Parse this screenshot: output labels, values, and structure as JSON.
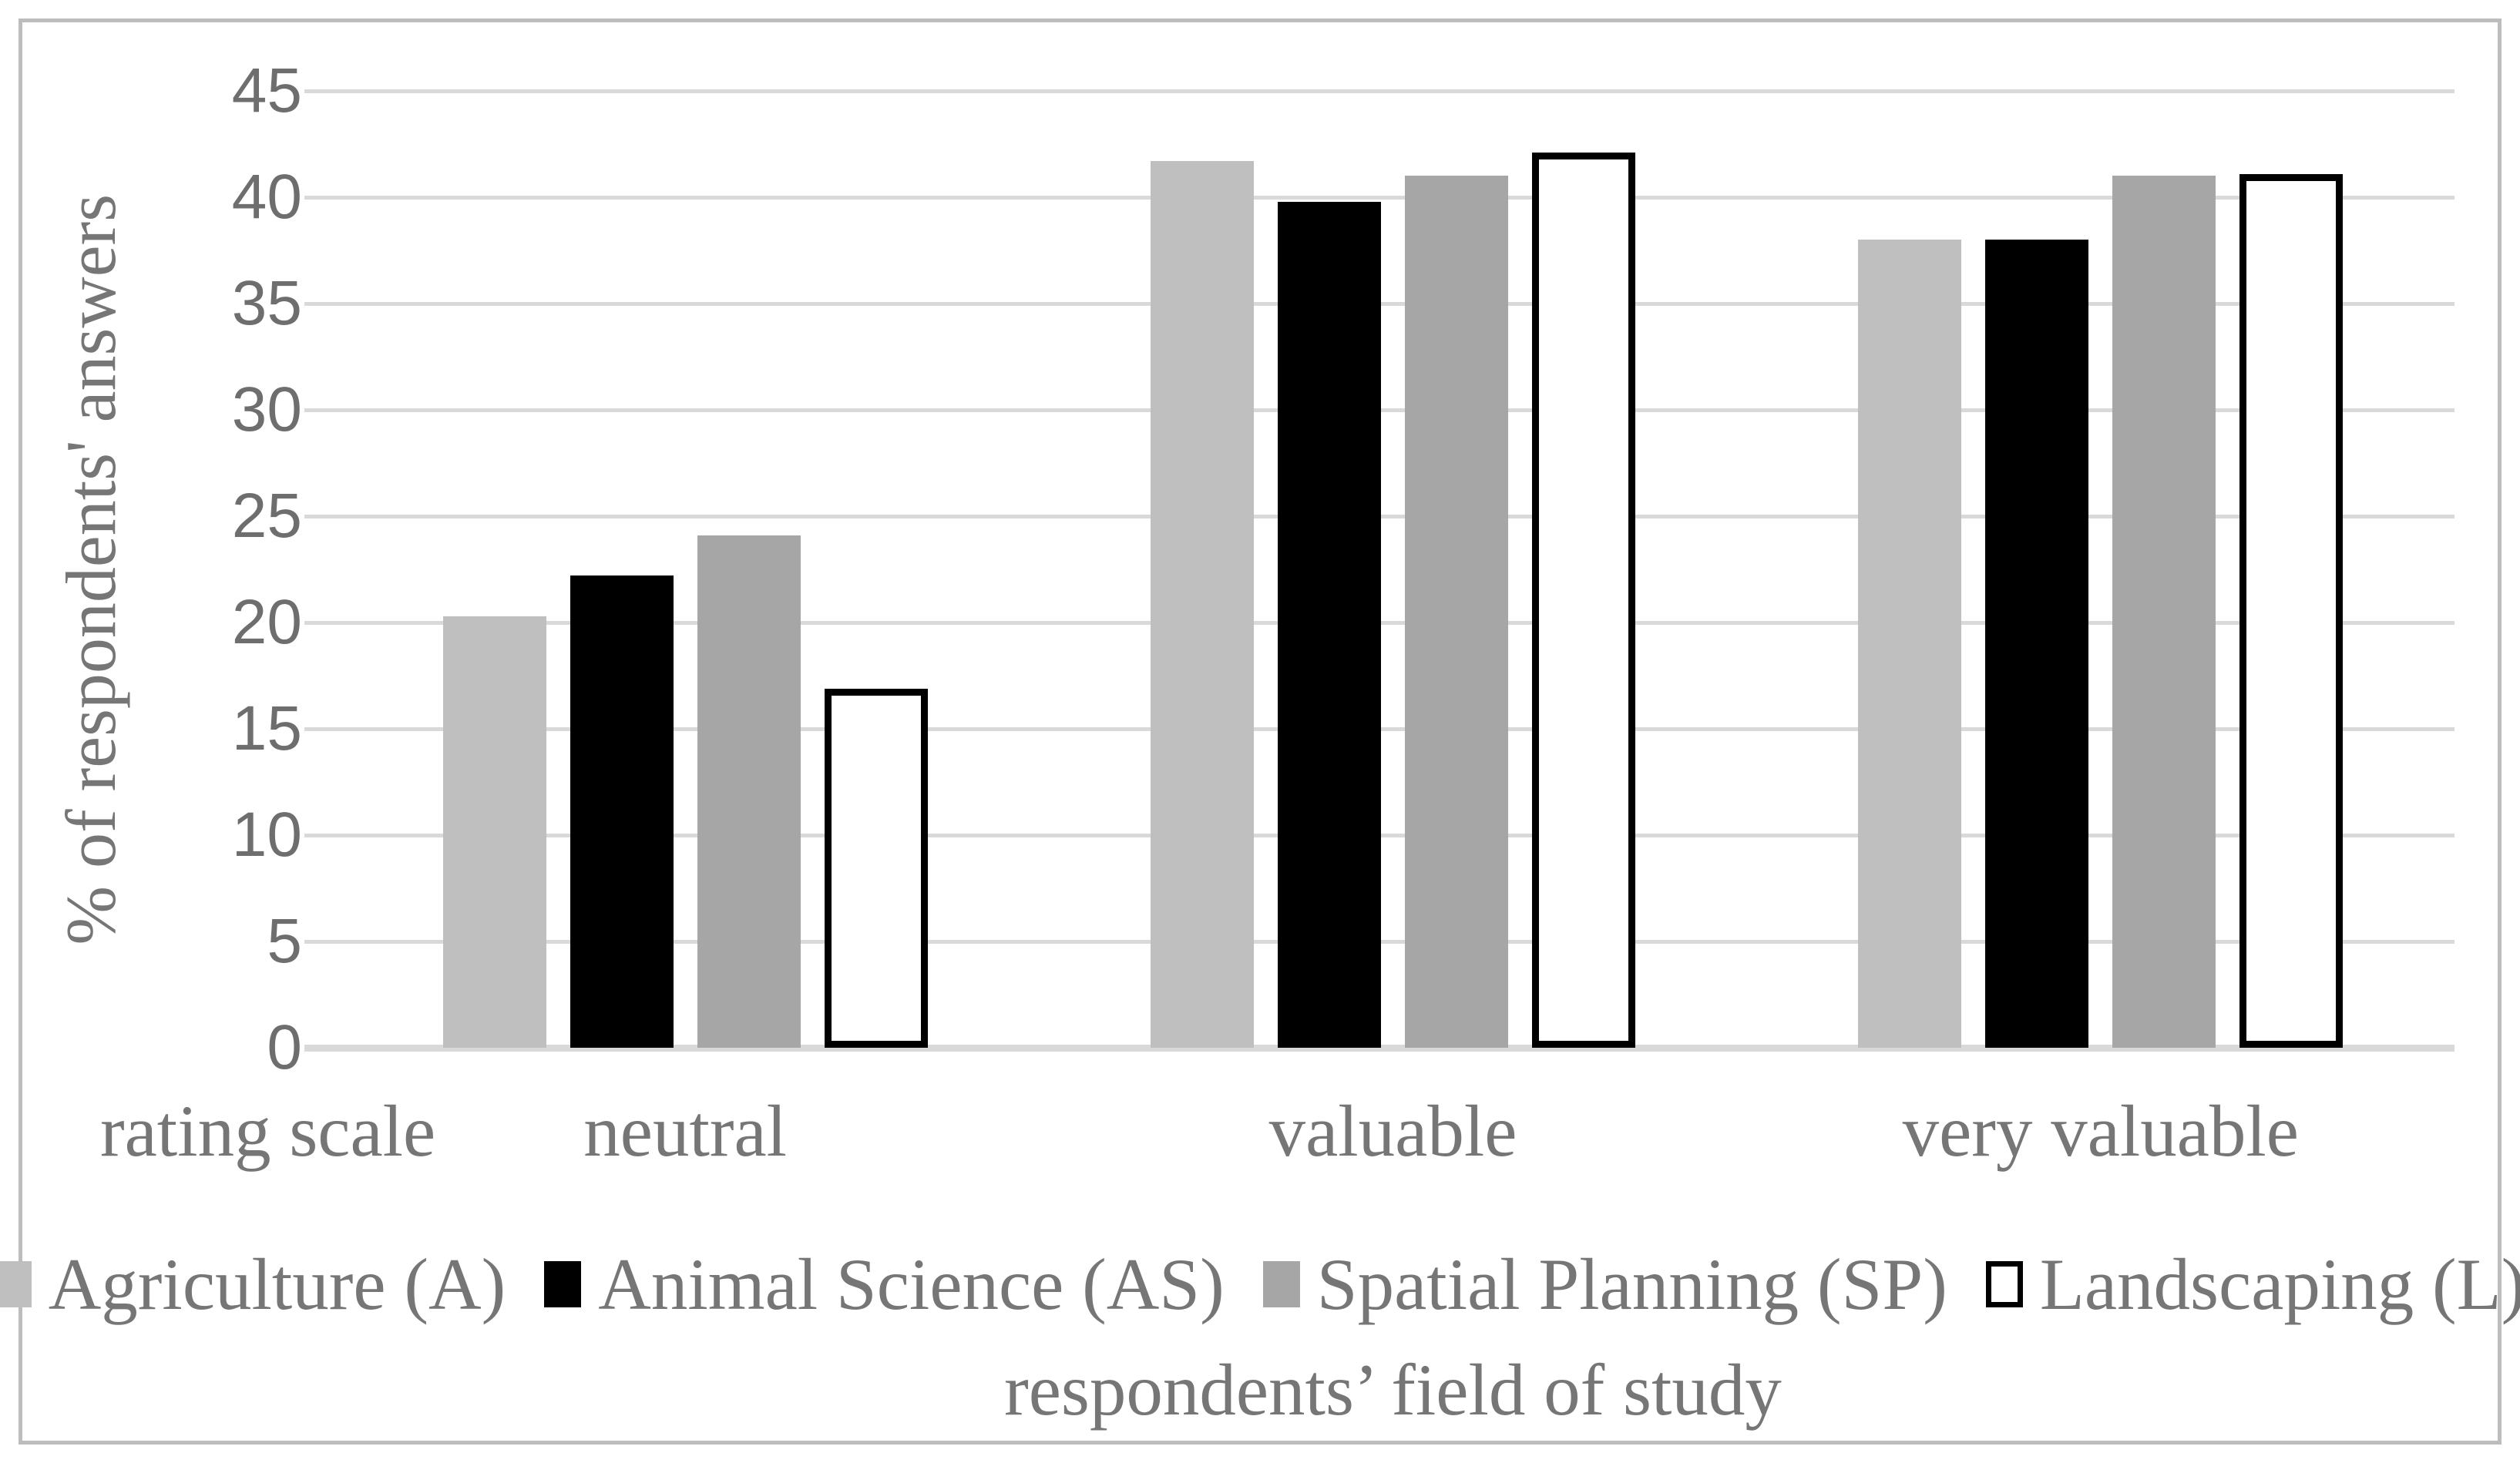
{
  "y_axis": {
    "title": "% of respondents' answers"
  },
  "x_axis": {
    "prefix_label": "rating scale",
    "title": "respondents’ field of study"
  },
  "chart_data": {
    "type": "bar",
    "title": "",
    "categories": [
      "neutral",
      "valuable",
      "very valuable"
    ],
    "series": [
      {
        "name": "Agriculture (A)",
        "color": "#bfbfbf",
        "values": [
          20.3,
          41.7,
          38.0
        ]
      },
      {
        "name": "Animal Science (AS)",
        "color": "#000000",
        "values": [
          22.2,
          39.8,
          38.0
        ]
      },
      {
        "name": "Spatial Planning (SP)",
        "color": "#a6a6a6",
        "values": [
          24.1,
          41.0,
          41.0
        ]
      },
      {
        "name": "Landscaping (L)",
        "color": "#ffffff",
        "border_color": "#000000",
        "values": [
          16.9,
          42.1,
          41.1
        ]
      }
    ],
    "ylabel": "% of respondents' answers",
    "xlabel": "respondents’ field of study",
    "rating_scale_label": "rating scale",
    "ylim": [
      0,
      45
    ],
    "ytick_step": 5,
    "yticks": [
      0,
      5,
      10,
      15,
      20,
      25,
      30,
      35,
      40,
      45
    ],
    "grid": true,
    "legend_position": "bottom",
    "gridline_color": "#d9d9d9",
    "tick_label_color": "#6e6e6e",
    "label_color": "#767676",
    "frame_color": "#bdbdbd"
  }
}
